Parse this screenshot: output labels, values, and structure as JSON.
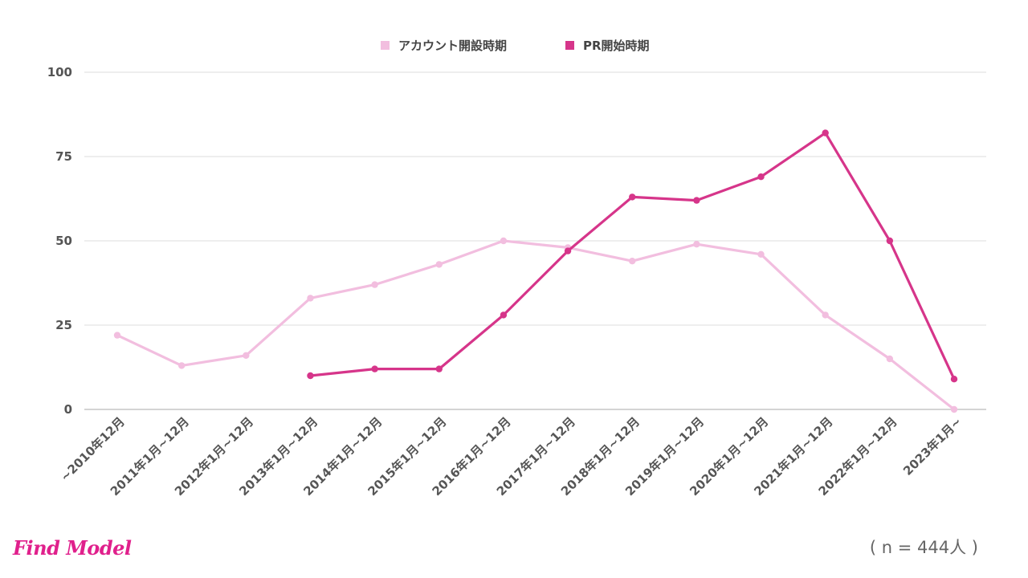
{
  "logo": {
    "text": "Find Model",
    "color": "#e0208c"
  },
  "sample_note": "( n = 444人 )",
  "colors": {
    "grid": "#dddddd",
    "axis": "#aaaaaa"
  },
  "chart_data": {
    "type": "line",
    "title": "",
    "xlabel": "",
    "ylabel": "",
    "categories": [
      "~2010年12月",
      "2011年1月~12月",
      "2012年1月~12月",
      "2013年1月~12月",
      "2014年1月~12月",
      "2015年1月~12月",
      "2016年1月~12月",
      "2017年1月~12月",
      "2018年1月~12月",
      "2019年1月~12月",
      "2020年1月~12月",
      "2021年1月~12月",
      "2022年1月~12月",
      "2023年1月~"
    ],
    "ylim": [
      0,
      100
    ],
    "yticks": [
      0,
      25,
      50,
      75,
      100
    ],
    "grid": true,
    "legend_position": "top-center",
    "series": [
      {
        "name": "アカウント開設時期",
        "color": "#f2bedf",
        "values": [
          22,
          13,
          16,
          33,
          37,
          43,
          50,
          48,
          44,
          49,
          46,
          28,
          15,
          0
        ]
      },
      {
        "name": "PR開始時期",
        "color": "#d6358a",
        "values": [
          null,
          null,
          null,
          10,
          12,
          12,
          28,
          47,
          63,
          62,
          69,
          82,
          50,
          9
        ]
      }
    ]
  }
}
